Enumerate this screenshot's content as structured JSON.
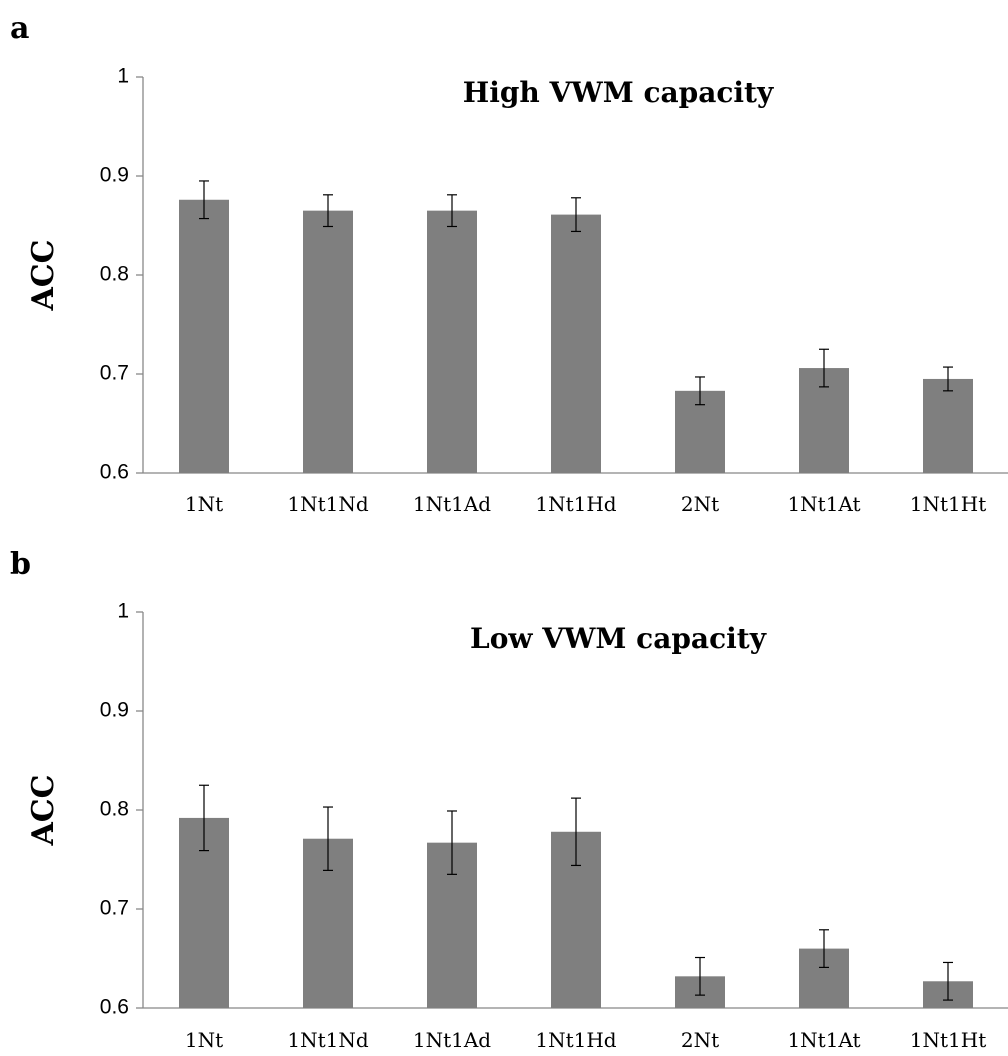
{
  "chart_data": [
    {
      "panel_label": "a",
      "type": "bar",
      "title": "High VWM capacity",
      "xlabel": "",
      "ylabel": "ACC",
      "ylim": [
        0.6,
        1
      ],
      "yticks": [
        "0.6",
        "0.7",
        "0.8",
        "0.9",
        "1"
      ],
      "categories": [
        "1Nt",
        "1Nt1Nd",
        "1Nt1Ad",
        "1Nt1Hd",
        "2Nt",
        "1Nt1At",
        "1Nt1Ht"
      ],
      "values": [
        0.876,
        0.865,
        0.865,
        0.861,
        0.683,
        0.706,
        0.695
      ],
      "error": [
        0.019,
        0.016,
        0.016,
        0.017,
        0.014,
        0.019,
        0.012
      ],
      "bar_color": "#7f7f7f",
      "grid": false,
      "legend": "none"
    },
    {
      "panel_label": "b",
      "type": "bar",
      "title": "Low VWM capacity",
      "xlabel": "",
      "ylabel": "ACC",
      "ylim": [
        0.6,
        1
      ],
      "yticks": [
        "0.6",
        "0.7",
        "0.8",
        "0.9",
        "1"
      ],
      "categories": [
        "1Nt",
        "1Nt1Nd",
        "1Nt1Ad",
        "1Nt1Hd",
        "2Nt",
        "1Nt1At",
        "1Nt1Ht"
      ],
      "values": [
        0.792,
        0.771,
        0.767,
        0.778,
        0.632,
        0.66,
        0.627
      ],
      "error": [
        0.033,
        0.032,
        0.032,
        0.034,
        0.019,
        0.019,
        0.019
      ],
      "bar_color": "#7f7f7f",
      "grid": false,
      "legend": "none"
    }
  ]
}
